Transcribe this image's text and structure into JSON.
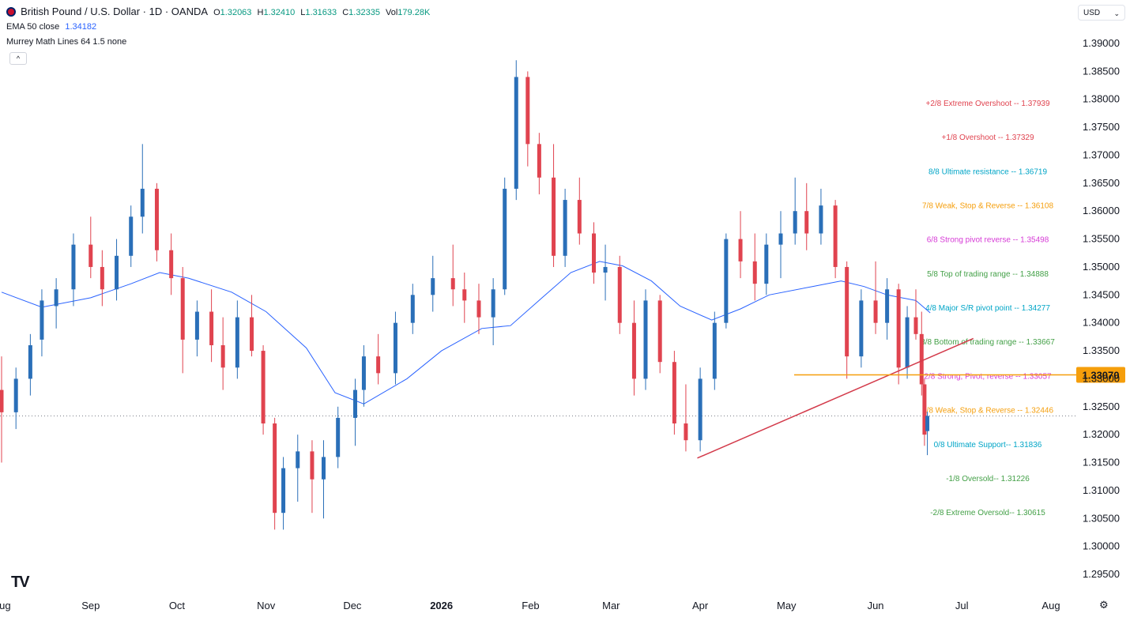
{
  "header": {
    "symbol": "British Pound / U.S. Dollar · 1D · OANDA",
    "o_label": "O",
    "o_value": "1.32063",
    "h_label": "H",
    "h_value": "1.32410",
    "l_label": "L",
    "l_value": "1.31633",
    "c_label": "C",
    "c_value": "1.32335",
    "vol_label": "Vol",
    "vol_value": "179.28K",
    "ema_label": "EMA 50 close",
    "ema_value": "1.34182",
    "murrey_label": "Murrey Math Lines 64 1.5 none",
    "collapse_icon": "^",
    "currency": "USD"
  },
  "colors": {
    "up": "#2a6fb8",
    "down": "#e0434f",
    "ema": "#2962ff",
    "trendline": "#d33a4a",
    "horizontal": "#f59e0b",
    "price_badge": "#f59e0b"
  },
  "chart_data": {
    "type": "candlestick",
    "ylim": [
      1.2925,
      1.3925
    ],
    "y_ticks": [
      "1.39000",
      "1.38500",
      "1.38000",
      "1.37500",
      "1.37000",
      "1.36500",
      "1.36000",
      "1.35500",
      "1.35000",
      "1.34500",
      "1.34000",
      "1.33500",
      "1.33000",
      "1.32500",
      "1.32000",
      "1.31500",
      "1.31000",
      "1.30500",
      "1.30000",
      "1.29500"
    ],
    "x_ticks": [
      "Aug",
      "Sep",
      "Oct",
      "Nov",
      "Dec",
      "2026",
      "Feb",
      "Mar",
      "Apr",
      "May",
      "Jun",
      "Jul",
      "Aug"
    ],
    "current_price": 1.32335,
    "price_badge": "1.33070",
    "horizontal_level": 1.3307,
    "trendline": [
      {
        "date": "2026-03-31",
        "price": 1.3158
      },
      {
        "date": "2026-07-05",
        "price": 1.3372
      }
    ],
    "murrey_levels": [
      {
        "label": "+2/8 Extreme Overshoot --  1.37939",
        "value": 1.37939,
        "color": "#e0434f"
      },
      {
        "label": "+1/8 Overshoot --  1.37329",
        "value": 1.37329,
        "color": "#e0434f"
      },
      {
        "label": "8/8 Ultimate resistance --  1.36719",
        "value": 1.36719,
        "color": "#00a5c7"
      },
      {
        "label": "7/8 Weak, Stop & Reverse --  1.36108",
        "value": 1.36108,
        "color": "#f59e0b"
      },
      {
        "label": "6/8 Strong pivot reverse --  1.35498",
        "value": 1.35498,
        "color": "#d63ad6"
      },
      {
        "label": "5/8 Top of trading range --  1.34888",
        "value": 1.34888,
        "color": "#43a047"
      },
      {
        "label": "4/8 Major S/R pivot point --  1.34277",
        "value": 1.34277,
        "color": "#00a5c7"
      },
      {
        "label": "3/8 Bottom of trading range --  1.33667",
        "value": 1.33667,
        "color": "#43a047"
      },
      {
        "label": "2/8 Strong, Pivot, reverse --  1.33057",
        "value": 1.33057,
        "color": "#d63ad6"
      },
      {
        "label": "1/8 Weak, Stop & Reverse --  1.32446",
        "value": 1.32446,
        "color": "#f59e0b"
      },
      {
        "label": "0/8 Ultimate Support--  1.31836",
        "value": 1.31836,
        "color": "#00a5c7"
      },
      {
        "label": "-1/8 Oversold--  1.31226",
        "value": 1.31226,
        "color": "#43a047"
      },
      {
        "label": "-2/8 Extreme Oversold--  1.30615",
        "value": 1.30615,
        "color": "#43a047"
      }
    ],
    "ema_50": [
      [
        "2025-08-01",
        1.3455
      ],
      [
        "2025-08-15",
        1.3428
      ],
      [
        "2025-09-01",
        1.3445
      ],
      [
        "2025-09-15",
        1.347
      ],
      [
        "2025-09-25",
        1.349
      ],
      [
        "2025-10-05",
        1.348
      ],
      [
        "2025-10-20",
        1.3455
      ],
      [
        "2025-11-01",
        1.342
      ],
      [
        "2025-11-15",
        1.3355
      ],
      [
        "2025-11-25",
        1.3275
      ],
      [
        "2025-12-05",
        1.3255
      ],
      [
        "2025-12-20",
        1.33
      ],
      [
        "2026-01-01",
        1.335
      ],
      [
        "2026-01-15",
        1.339
      ],
      [
        "2026-01-25",
        1.3395
      ],
      [
        "2026-02-05",
        1.3445
      ],
      [
        "2026-02-15",
        1.349
      ],
      [
        "2026-02-25",
        1.351
      ],
      [
        "2026-03-05",
        1.3502
      ],
      [
        "2026-03-15",
        1.3475
      ],
      [
        "2026-03-25",
        1.343
      ],
      [
        "2026-04-05",
        1.3405
      ],
      [
        "2026-04-15",
        1.3425
      ],
      [
        "2026-04-25",
        1.345
      ],
      [
        "2026-05-10",
        1.3465
      ],
      [
        "2026-05-20",
        1.3475
      ],
      [
        "2026-05-28",
        1.3465
      ],
      [
        "2026-06-05",
        1.345
      ],
      [
        "2026-06-15",
        1.344
      ],
      [
        "2026-06-20",
        1.3418
      ]
    ],
    "candles": [
      [
        "2025-08-01",
        1.328,
        1.334,
        1.315,
        1.324
      ],
      [
        "2025-08-06",
        1.324,
        1.332,
        1.321,
        1.33
      ],
      [
        "2025-08-11",
        1.33,
        1.338,
        1.327,
        1.336
      ],
      [
        "2025-08-15",
        1.337,
        1.346,
        1.334,
        1.344
      ],
      [
        "2025-08-20",
        1.343,
        1.348,
        1.339,
        1.346
      ],
      [
        "2025-08-26",
        1.346,
        1.356,
        1.343,
        1.354
      ],
      [
        "2025-09-01",
        1.354,
        1.359,
        1.348,
        1.35
      ],
      [
        "2025-09-05",
        1.35,
        1.353,
        1.343,
        1.346
      ],
      [
        "2025-09-10",
        1.346,
        1.355,
        1.344,
        1.352
      ],
      [
        "2025-09-15",
        1.352,
        1.361,
        1.35,
        1.359
      ],
      [
        "2025-09-19",
        1.359,
        1.372,
        1.356,
        1.364
      ],
      [
        "2025-09-24",
        1.364,
        1.365,
        1.351,
        1.353
      ],
      [
        "2025-09-29",
        1.353,
        1.356,
        1.345,
        1.348
      ],
      [
        "2025-10-03",
        1.348,
        1.35,
        1.331,
        1.337
      ],
      [
        "2025-10-08",
        1.337,
        1.344,
        1.334,
        1.342
      ],
      [
        "2025-10-13",
        1.342,
        1.346,
        1.333,
        1.336
      ],
      [
        "2025-10-17",
        1.336,
        1.341,
        1.328,
        1.332
      ],
      [
        "2025-10-22",
        1.332,
        1.344,
        1.33,
        1.341
      ],
      [
        "2025-10-27",
        1.341,
        1.345,
        1.334,
        1.335
      ],
      [
        "2025-10-31",
        1.335,
        1.336,
        1.32,
        1.322
      ],
      [
        "2025-11-04",
        1.322,
        1.323,
        1.303,
        1.306
      ],
      [
        "2025-11-07",
        1.306,
        1.316,
        1.303,
        1.314
      ],
      [
        "2025-11-12",
        1.314,
        1.32,
        1.308,
        1.317
      ],
      [
        "2025-11-17",
        1.317,
        1.319,
        1.306,
        1.312
      ],
      [
        "2025-11-21",
        1.312,
        1.319,
        1.305,
        1.316
      ],
      [
        "2025-11-26",
        1.316,
        1.325,
        1.314,
        1.323
      ],
      [
        "2025-12-02",
        1.323,
        1.33,
        1.318,
        1.328
      ],
      [
        "2025-12-05",
        1.328,
        1.336,
        1.325,
        1.334
      ],
      [
        "2025-12-10",
        1.334,
        1.338,
        1.329,
        1.331
      ],
      [
        "2025-12-16",
        1.331,
        1.342,
        1.329,
        1.34
      ],
      [
        "2025-12-22",
        1.34,
        1.347,
        1.338,
        1.345
      ],
      [
        "2025-12-29",
        1.345,
        1.352,
        1.342,
        1.348
      ],
      [
        "2026-01-05",
        1.348,
        1.354,
        1.343,
        1.346
      ],
      [
        "2026-01-09",
        1.346,
        1.349,
        1.34,
        1.344
      ],
      [
        "2026-01-14",
        1.344,
        1.347,
        1.338,
        1.341
      ],
      [
        "2026-01-19",
        1.341,
        1.348,
        1.336,
        1.346
      ],
      [
        "2026-01-23",
        1.346,
        1.366,
        1.345,
        1.364
      ],
      [
        "2026-01-27",
        1.364,
        1.387,
        1.362,
        1.384
      ],
      [
        "2026-01-31",
        1.384,
        1.385,
        1.368,
        1.372
      ],
      [
        "2026-02-04",
        1.372,
        1.374,
        1.363,
        1.366
      ],
      [
        "2026-02-09",
        1.366,
        1.372,
        1.35,
        1.352
      ],
      [
        "2026-02-13",
        1.352,
        1.364,
        1.35,
        1.362
      ],
      [
        "2026-02-18",
        1.362,
        1.366,
        1.354,
        1.356
      ],
      [
        "2026-02-23",
        1.356,
        1.358,
        1.347,
        1.349
      ],
      [
        "2026-02-27",
        1.349,
        1.354,
        1.344,
        1.35
      ],
      [
        "2026-03-04",
        1.35,
        1.352,
        1.338,
        1.34
      ],
      [
        "2026-03-09",
        1.34,
        1.344,
        1.327,
        1.33
      ],
      [
        "2026-03-13",
        1.33,
        1.346,
        1.328,
        1.344
      ],
      [
        "2026-03-18",
        1.344,
        1.345,
        1.331,
        1.333
      ],
      [
        "2026-03-23",
        1.333,
        1.335,
        1.32,
        1.322
      ],
      [
        "2026-03-27",
        1.322,
        1.329,
        1.317,
        1.319
      ],
      [
        "2026-04-01",
        1.319,
        1.332,
        1.317,
        1.33
      ],
      [
        "2026-04-06",
        1.33,
        1.342,
        1.328,
        1.34
      ],
      [
        "2026-04-10",
        1.34,
        1.356,
        1.339,
        1.355
      ],
      [
        "2026-04-15",
        1.355,
        1.36,
        1.348,
        1.351
      ],
      [
        "2026-04-20",
        1.351,
        1.356,
        1.344,
        1.347
      ],
      [
        "2026-04-24",
        1.347,
        1.356,
        1.345,
        1.354
      ],
      [
        "2026-04-29",
        1.354,
        1.36,
        1.348,
        1.356
      ],
      [
        "2026-05-04",
        1.356,
        1.366,
        1.354,
        1.36
      ],
      [
        "2026-05-08",
        1.36,
        1.365,
        1.353,
        1.356
      ],
      [
        "2026-05-13",
        1.356,
        1.364,
        1.354,
        1.361
      ],
      [
        "2026-05-18",
        1.361,
        1.362,
        1.348,
        1.35
      ],
      [
        "2026-05-22",
        1.35,
        1.351,
        1.33,
        1.334
      ],
      [
        "2026-05-27",
        1.334,
        1.346,
        1.332,
        1.344
      ],
      [
        "2026-06-01",
        1.344,
        1.351,
        1.338,
        1.34
      ],
      [
        "2026-06-05",
        1.34,
        1.348,
        1.337,
        1.346
      ],
      [
        "2026-06-09",
        1.346,
        1.347,
        1.329,
        1.332
      ],
      [
        "2026-06-12",
        1.332,
        1.343,
        1.33,
        1.341
      ],
      [
        "2026-06-15",
        1.341,
        1.346,
        1.337,
        1.338
      ],
      [
        "2026-06-17",
        1.338,
        1.342,
        1.327,
        1.329
      ],
      [
        "2026-06-18",
        1.329,
        1.33,
        1.318,
        1.32
      ],
      [
        "2026-06-19",
        1.32063,
        1.3241,
        1.31633,
        1.32335
      ]
    ]
  }
}
